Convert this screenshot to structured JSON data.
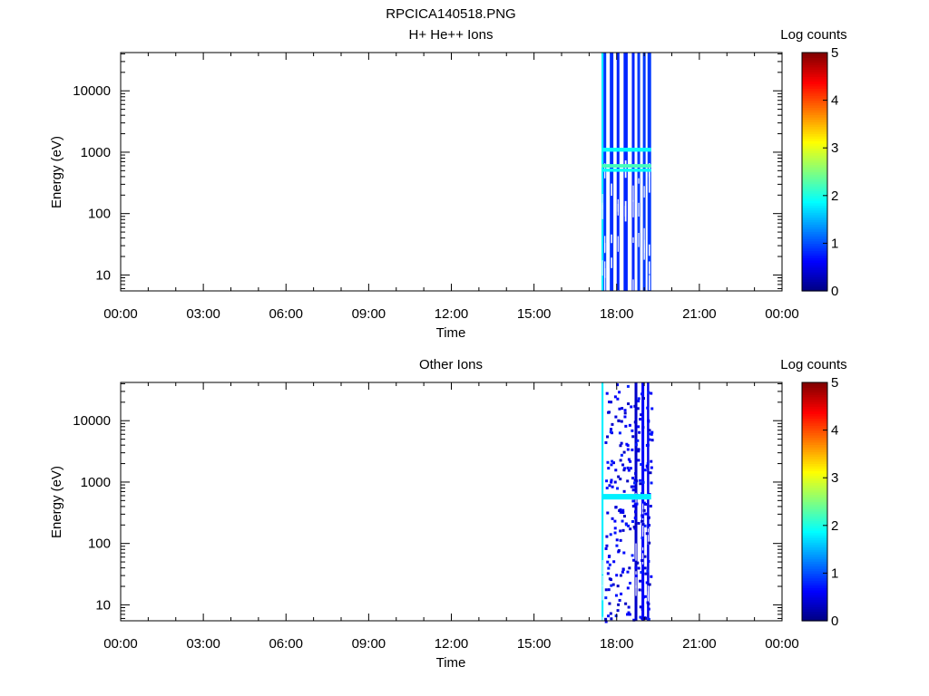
{
  "figure": {
    "title": "RPCICA140518.PNG"
  },
  "chart_data": [
    {
      "type": "heatmap",
      "title": "H+ He++ Ions",
      "xlabel": "Time",
      "ylabel": "Energy (eV)",
      "x_tick_labels": [
        "00:00",
        "03:00",
        "06:00",
        "09:00",
        "12:00",
        "15:00",
        "18:00",
        "21:00",
        "00:00"
      ],
      "x_ticks_hours": [
        0,
        3,
        6,
        9,
        12,
        15,
        18,
        21,
        24
      ],
      "xlim_hours": [
        0,
        24
      ],
      "y_scale": "log",
      "ylim": [
        5.5,
        42000
      ],
      "y_tick_labels": [
        "10",
        "100",
        "1000",
        "10000"
      ],
      "y_ticks": [
        10,
        100,
        1000,
        10000
      ],
      "colorbar": {
        "label": "Log counts",
        "range": [
          0,
          5
        ],
        "tick_labels": [
          "0",
          "1",
          "2",
          "3",
          "4",
          "5"
        ],
        "colormap": "jet"
      },
      "data_time_range_hours": [
        17.45,
        19.25
      ],
      "columns": [
        {
          "start": 17.45,
          "end": 17.52,
          "level": 1.8
        },
        {
          "start": 17.52,
          "end": 17.62,
          "level": 0.9
        },
        {
          "start": 17.75,
          "end": 17.88,
          "level": 0.85
        },
        {
          "start": 18.0,
          "end": 18.1,
          "level": 0.8
        },
        {
          "start": 18.25,
          "end": 18.4,
          "level": 0.8
        },
        {
          "start": 18.55,
          "end": 18.65,
          "level": 0.8
        },
        {
          "start": 18.75,
          "end": 18.85,
          "level": 0.9
        },
        {
          "start": 18.95,
          "end": 19.05,
          "level": 0.9
        },
        {
          "start": 19.12,
          "end": 19.25,
          "level": 0.9
        }
      ],
      "energy_bands": [
        {
          "energy_min": 1020,
          "energy_max": 1180,
          "level": 1.9
        },
        {
          "energy_min": 560,
          "energy_max": 640,
          "level": 2.2
        },
        {
          "energy_min": 480,
          "energy_max": 540,
          "level": 1.9
        }
      ]
    },
    {
      "type": "heatmap",
      "title": "Other Ions",
      "xlabel": "Time",
      "ylabel": "Energy (eV)",
      "x_tick_labels": [
        "00:00",
        "03:00",
        "06:00",
        "09:00",
        "12:00",
        "15:00",
        "18:00",
        "21:00",
        "00:00"
      ],
      "x_ticks_hours": [
        0,
        3,
        6,
        9,
        12,
        15,
        18,
        21,
        24
      ],
      "xlim_hours": [
        0,
        24
      ],
      "y_scale": "log",
      "ylim": [
        5.5,
        42000
      ],
      "y_tick_labels": [
        "10",
        "100",
        "1000",
        "10000"
      ],
      "y_ticks": [
        10,
        100,
        1000,
        10000
      ],
      "colorbar": {
        "label": "Log counts",
        "range": [
          0,
          5
        ],
        "tick_labels": [
          "0",
          "1",
          "2",
          "3",
          "4",
          "5"
        ],
        "colormap": "jet"
      },
      "data_time_range_hours": [
        17.45,
        19.25
      ],
      "columns": [
        {
          "start": 17.45,
          "end": 17.52,
          "level": 1.8
        },
        {
          "start": 18.65,
          "end": 18.75,
          "level": 0.35
        },
        {
          "start": 18.9,
          "end": 19.0,
          "level": 0.6
        },
        {
          "start": 19.1,
          "end": 19.18,
          "level": 0.5
        }
      ],
      "energy_bands": [
        {
          "energy_min": 520,
          "energy_max": 640,
          "level": 1.8
        }
      ],
      "speckle": {
        "time_range_hours": [
          17.55,
          19.25
        ],
        "level": 0.3
      }
    }
  ]
}
